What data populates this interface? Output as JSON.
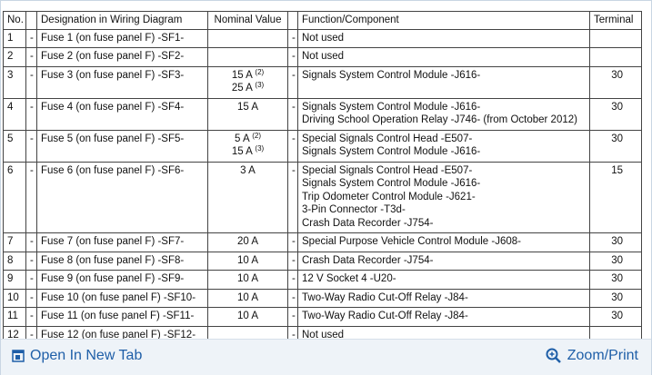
{
  "table": {
    "headers": {
      "no": "No.",
      "designation": "Designation in Wiring Diagram",
      "nominal": "Nominal Value",
      "function": "Function/Component",
      "terminal": "Terminal"
    },
    "rows": [
      {
        "no": "1",
        "dash1": "-",
        "designation": "Fuse 1 (on fuse panel F) -SF1-",
        "nominal": [],
        "dash2": "-",
        "function": [
          "Not used"
        ]
      },
      {
        "no": "2",
        "dash1": "-",
        "designation": "Fuse 2 (on fuse panel F) -SF2-",
        "nominal": [],
        "dash2": "-",
        "function": [
          "Not used"
        ]
      },
      {
        "no": "3",
        "dash1": "-",
        "designation": "Fuse 3 (on fuse panel F) -SF3-",
        "nominal": [
          {
            "text": "15 A",
            "note": "(2)"
          },
          {
            "text": "25 A",
            "note": "(3)"
          }
        ],
        "dash2": "-",
        "function": [
          "Signals System Control Module -J616-"
        ],
        "terminal": "30"
      },
      {
        "no": "4",
        "dash1": "-",
        "designation": "Fuse 4 (on fuse panel F) -SF4-",
        "nominal": [
          {
            "text": "15 A"
          }
        ],
        "dash2": "-",
        "function": [
          "Signals System Control Module -J616-",
          "Driving School Operation Relay -J746- (from October 2012)"
        ],
        "terminal": "30"
      },
      {
        "no": "5",
        "dash1": "-",
        "designation": "Fuse 5 (on fuse panel F) -SF5-",
        "nominal": [
          {
            "text": "5 A",
            "note": "(2)"
          },
          {
            "text": "15 A",
            "note": "(3)"
          }
        ],
        "dash2": "-",
        "function": [
          "Special Signals Control Head -E507-",
          "Signals System Control Module -J616-"
        ],
        "terminal": "30"
      },
      {
        "no": "6",
        "dash1": "-",
        "designation": "Fuse 6 (on fuse panel F) -SF6-",
        "nominal": [
          {
            "text": "3 A"
          }
        ],
        "dash2": "-",
        "function": [
          "Special Signals Control Head -E507-",
          "Signals System Control Module -J616-",
          "Trip Odometer Control Module -J621-",
          "3-Pin Connector -T3d-",
          "Crash Data Recorder -J754-"
        ],
        "terminal": "15"
      },
      {
        "no": "7",
        "dash1": "-",
        "designation": "Fuse 7 (on fuse panel F) -SF7-",
        "nominal": [
          {
            "text": "20 A"
          }
        ],
        "dash2": "-",
        "function": [
          "Special Purpose Vehicle Control Module -J608-"
        ],
        "terminal": "30"
      },
      {
        "no": "8",
        "dash1": "-",
        "designation": "Fuse 8 (on fuse panel F) -SF8-",
        "nominal": [
          {
            "text": "10 A"
          }
        ],
        "dash2": "-",
        "function": [
          "Crash Data Recorder -J754-"
        ],
        "terminal": "30"
      },
      {
        "no": "9",
        "dash1": "-",
        "designation": "Fuse 9 (on fuse panel F) -SF9-",
        "nominal": [
          {
            "text": "10 A"
          }
        ],
        "dash2": "-",
        "function": [
          "12 V Socket 4 -U20-"
        ],
        "terminal": "30"
      },
      {
        "no": "10",
        "dash1": "-",
        "designation": "Fuse 10 (on fuse panel F) -SF10-",
        "nominal": [
          {
            "text": "10 A"
          }
        ],
        "dash2": "-",
        "function": [
          "Two-Way Radio Cut-Off Relay -J84-"
        ],
        "terminal": "30"
      },
      {
        "no": "11",
        "dash1": "-",
        "designation": "Fuse 11 (on fuse panel F) -SF11-",
        "nominal": [
          {
            "text": "10 A"
          }
        ],
        "dash2": "-",
        "function": [
          "Two-Way Radio Cut-Off Relay -J84-"
        ],
        "terminal": "30"
      },
      {
        "no": "12",
        "dash1": "-",
        "designation": "Fuse 12 (on fuse panel F) -SF12-",
        "nominal": [],
        "dash2": "-",
        "function": [
          "Not used"
        ]
      }
    ]
  },
  "footer": {
    "open": "Open In New Tab",
    "zoom": "Zoom/Print"
  }
}
